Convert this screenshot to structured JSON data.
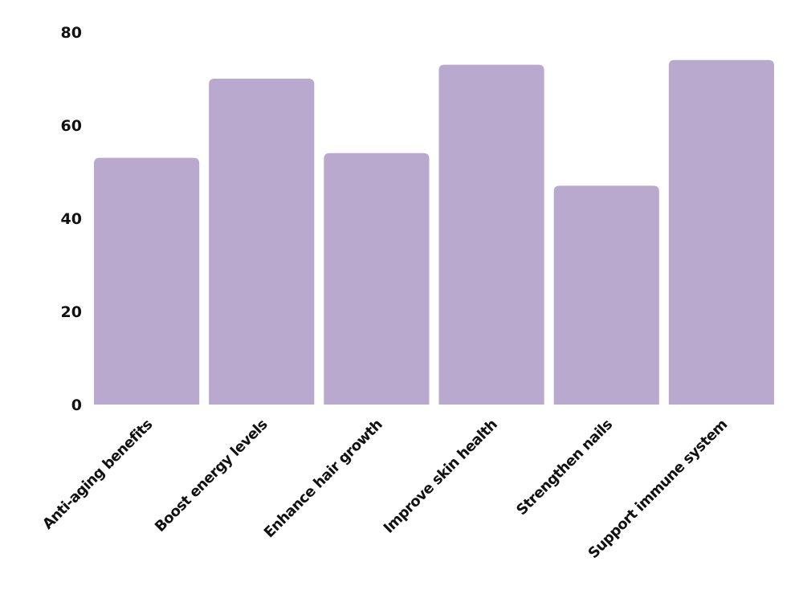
{
  "chart_data": {
    "type": "bar",
    "title": "",
    "xlabel": "",
    "ylabel": "",
    "categories": [
      "Anti-aging benefits",
      "Boost energy levels",
      "Enhance hair growth",
      "Improve skin health",
      "Strengthen nails",
      "Support immune system"
    ],
    "values": [
      53,
      70,
      54,
      73,
      47,
      74
    ],
    "ylim": [
      0,
      80
    ],
    "yticks": [
      0,
      20,
      40,
      60,
      80
    ],
    "grid": false,
    "legend": "none",
    "bar_color": "#b9a9cf"
  }
}
